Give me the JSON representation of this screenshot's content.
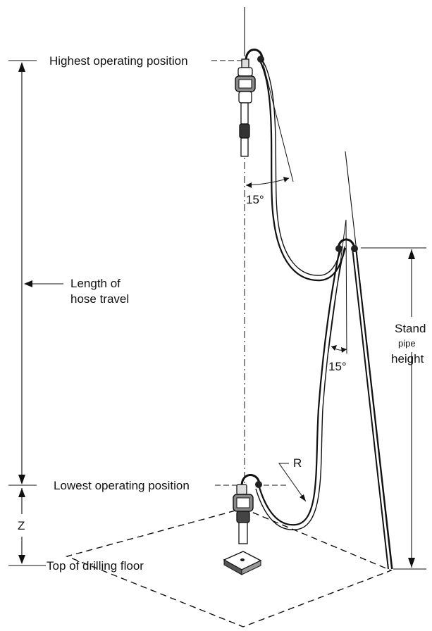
{
  "labels": {
    "highest": "Highest operating position",
    "length_line1": "Length of",
    "length_line2": "hose travel",
    "lowest": "Lowest operating position",
    "z": "Z",
    "floor": "Top of drilling floor",
    "stand_line1": "Stand",
    "stand_line2": "pipe",
    "stand_line3": "height",
    "angle_upper": "15°",
    "angle_lower": "15°",
    "radius": "R"
  }
}
